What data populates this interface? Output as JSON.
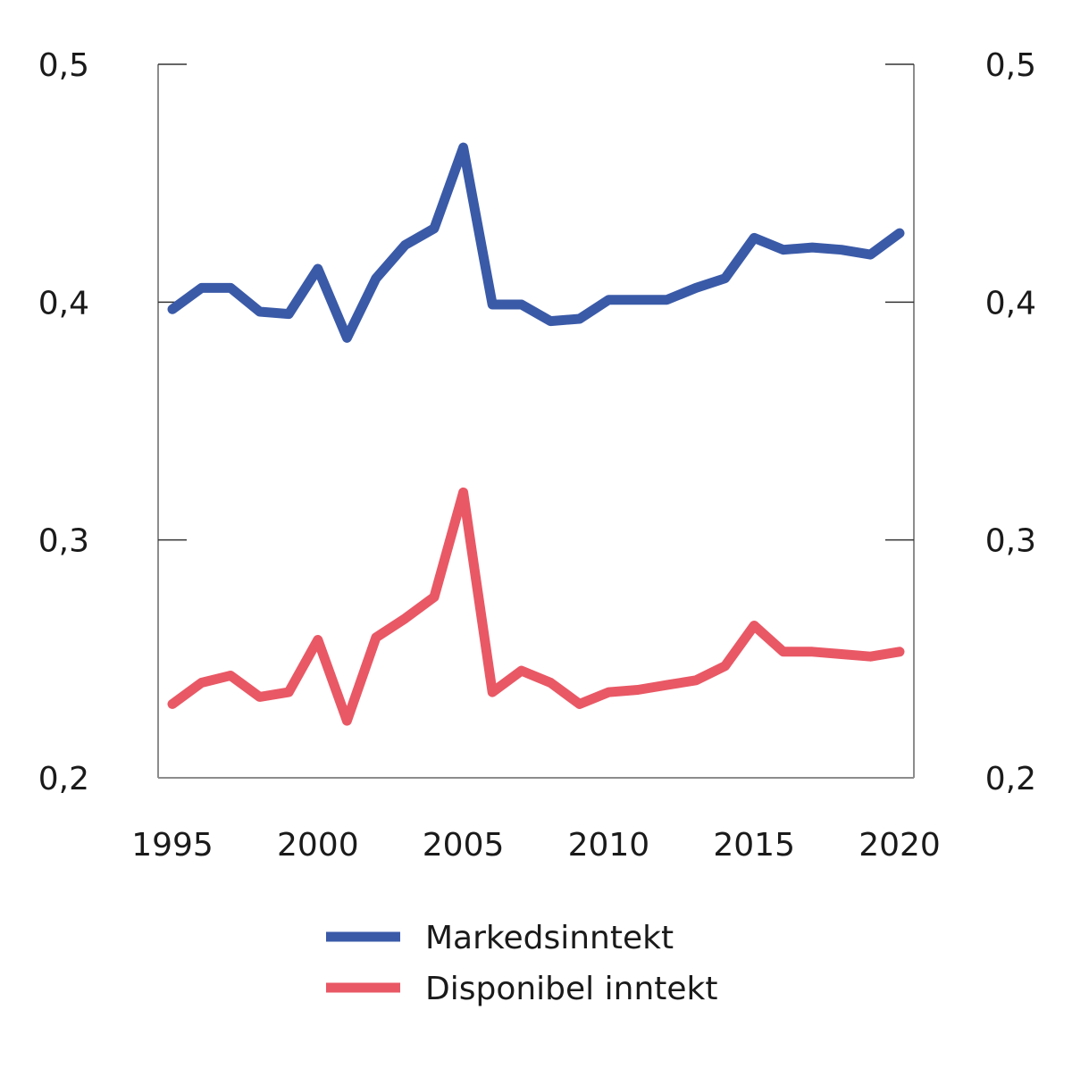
{
  "chart_data": {
    "type": "line",
    "title": "",
    "xlabel": "",
    "ylabel": "",
    "x": [
      1995,
      1996,
      1997,
      1998,
      1999,
      2000,
      2001,
      2002,
      2003,
      2004,
      2005,
      2006,
      2007,
      2008,
      2009,
      2010,
      2011,
      2012,
      2013,
      2014,
      2015,
      2016,
      2017,
      2018,
      2019,
      2020
    ],
    "xlim": [
      1995,
      2020
    ],
    "ylim": [
      0.2,
      0.5
    ],
    "x_ticks": [
      1995,
      2000,
      2005,
      2010,
      2015,
      2020
    ],
    "x_tick_labels": [
      "1995",
      "2000",
      "2005",
      "2010",
      "2015",
      "2020"
    ],
    "y_ticks": [
      0.2,
      0.3,
      0.4,
      0.5
    ],
    "y_tick_labels_left": [
      "0,2",
      "0,3",
      "0,4",
      "0,5"
    ],
    "y_tick_labels_right": [
      "0,2",
      "0,3",
      "0,4",
      "0,5"
    ],
    "grid": false,
    "legend_position": "bottom-center",
    "series": [
      {
        "name": "Markedsinntekt",
        "color": "#3a5aa8",
        "values": [
          0.397,
          0.406,
          0.406,
          0.396,
          0.395,
          0.414,
          0.385,
          0.41,
          0.424,
          0.431,
          0.465,
          0.399,
          0.399,
          0.392,
          0.393,
          0.401,
          0.401,
          0.401,
          0.406,
          0.41,
          0.427,
          0.422,
          0.423,
          0.422,
          0.42,
          0.429
        ]
      },
      {
        "name": "Disponibel inntekt",
        "color": "#e95865",
        "values": [
          0.231,
          0.24,
          0.243,
          0.234,
          0.236,
          0.258,
          0.224,
          0.259,
          0.267,
          0.276,
          0.32,
          0.236,
          0.245,
          0.24,
          0.231,
          0.236,
          0.237,
          0.239,
          0.241,
          0.247,
          0.264,
          0.253,
          0.253,
          0.252,
          0.251,
          0.253
        ]
      }
    ]
  }
}
